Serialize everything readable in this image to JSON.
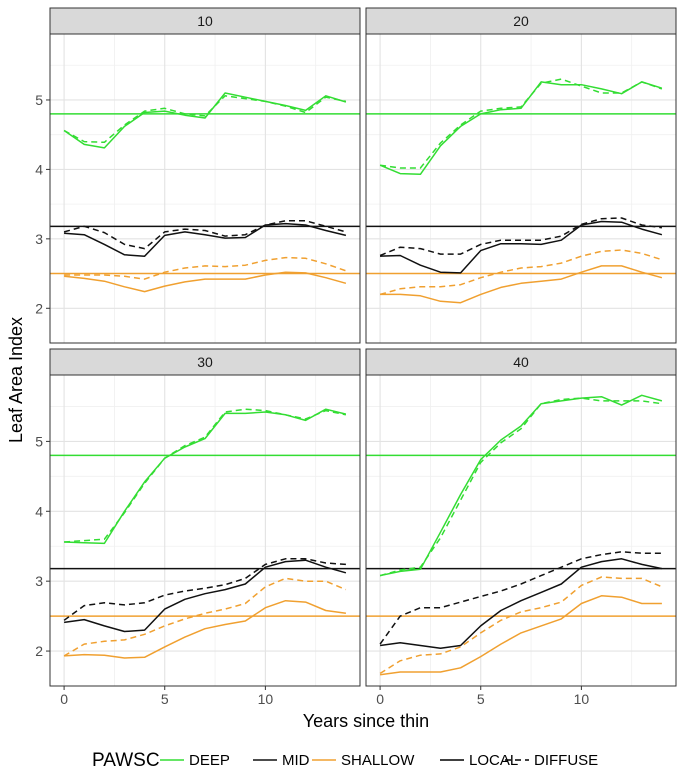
{
  "chart_data": {
    "type": "line",
    "facet_variable": "thinning",
    "xlabel": "Years since thin",
    "ylabel": "Leaf Area Index",
    "xlim": [
      -0.7,
      14.7
    ],
    "ylim": [
      1.5,
      5.95
    ],
    "x_ticks": [
      0,
      5,
      10
    ],
    "y_ticks": [
      2,
      3,
      4,
      5
    ],
    "x": [
      0,
      1,
      2,
      3,
      4,
      5,
      6,
      7,
      8,
      9,
      10,
      11,
      12,
      13,
      14
    ],
    "colors": {
      "DEEP": "#33dd33",
      "MID": "#111111",
      "SHALLOW": "#f0a030"
    },
    "reference_lines": [
      {
        "group": "DEEP",
        "value": 4.8
      },
      {
        "group": "MID",
        "value": 3.18
      },
      {
        "group": "SHALLOW",
        "value": 2.5
      }
    ],
    "legend": {
      "title": "PAWSC",
      "color_entries": [
        "DEEP",
        "MID",
        "SHALLOW"
      ],
      "linetype_entries": [
        "LOCAL",
        "DIFFUSE"
      ],
      "position": "bottom"
    },
    "panels": [
      {
        "label": "10",
        "series": [
          {
            "group": "DEEP",
            "type": "LOCAL",
            "values": [
              4.56,
              4.36,
              4.31,
              4.62,
              4.82,
              4.84,
              4.78,
              4.74,
              5.1,
              5.04,
              4.98,
              4.92,
              4.85,
              5.06,
              4.97
            ]
          },
          {
            "group": "DEEP",
            "type": "DIFFUSE",
            "values": [
              4.56,
              4.4,
              4.39,
              4.64,
              4.84,
              4.88,
              4.8,
              4.77,
              5.06,
              5.02,
              4.98,
              4.91,
              4.82,
              5.04,
              4.98
            ]
          },
          {
            "group": "MID",
            "type": "LOCAL",
            "values": [
              3.08,
              3.06,
              2.92,
              2.77,
              2.75,
              3.05,
              3.1,
              3.06,
              3.01,
              3.02,
              3.2,
              3.22,
              3.2,
              3.12,
              3.05
            ]
          },
          {
            "group": "MID",
            "type": "DIFFUSE",
            "values": [
              3.1,
              3.18,
              3.09,
              2.92,
              2.86,
              3.1,
              3.14,
              3.12,
              3.04,
              3.06,
              3.2,
              3.26,
              3.26,
              3.18,
              3.1
            ]
          },
          {
            "group": "SHALLOW",
            "type": "LOCAL",
            "values": [
              2.46,
              2.43,
              2.39,
              2.31,
              2.24,
              2.32,
              2.38,
              2.42,
              2.42,
              2.42,
              2.48,
              2.52,
              2.51,
              2.44,
              2.36
            ]
          },
          {
            "group": "SHALLOW",
            "type": "DIFFUSE",
            "values": [
              2.48,
              2.48,
              2.48,
              2.46,
              2.42,
              2.52,
              2.58,
              2.61,
              2.6,
              2.62,
              2.69,
              2.73,
              2.72,
              2.64,
              2.54
            ]
          }
        ]
      },
      {
        "label": "20",
        "series": [
          {
            "group": "DEEP",
            "type": "LOCAL",
            "values": [
              4.06,
              3.94,
              3.93,
              4.34,
              4.62,
              4.8,
              4.86,
              4.88,
              5.26,
              5.22,
              5.22,
              5.16,
              5.09,
              5.26,
              5.17
            ]
          },
          {
            "group": "DEEP",
            "type": "DIFFUSE",
            "values": [
              4.06,
              4.02,
              4.02,
              4.38,
              4.64,
              4.84,
              4.88,
              4.9,
              5.24,
              5.3,
              5.2,
              5.1,
              5.1,
              5.26,
              5.16
            ]
          },
          {
            "group": "MID",
            "type": "LOCAL",
            "values": [
              2.75,
              2.76,
              2.62,
              2.52,
              2.51,
              2.83,
              2.93,
              2.93,
              2.92,
              2.98,
              3.2,
              3.25,
              3.24,
              3.14,
              3.06
            ]
          },
          {
            "group": "MID",
            "type": "DIFFUSE",
            "values": [
              2.76,
              2.88,
              2.86,
              2.78,
              2.78,
              2.92,
              2.98,
              2.98,
              2.98,
              3.04,
              3.21,
              3.29,
              3.3,
              3.2,
              3.16
            ]
          },
          {
            "group": "SHALLOW",
            "type": "LOCAL",
            "values": [
              2.2,
              2.2,
              2.18,
              2.1,
              2.08,
              2.2,
              2.3,
              2.36,
              2.39,
              2.42,
              2.52,
              2.61,
              2.61,
              2.52,
              2.44
            ]
          },
          {
            "group": "SHALLOW",
            "type": "DIFFUSE",
            "values": [
              2.2,
              2.28,
              2.31,
              2.31,
              2.34,
              2.44,
              2.52,
              2.58,
              2.6,
              2.65,
              2.75,
              2.82,
              2.84,
              2.79,
              2.7
            ]
          }
        ]
      },
      {
        "label": "30",
        "series": [
          {
            "group": "DEEP",
            "type": "LOCAL",
            "values": [
              3.56,
              3.55,
              3.54,
              4.0,
              4.42,
              4.76,
              4.92,
              5.04,
              5.4,
              5.4,
              5.42,
              5.38,
              5.3,
              5.46,
              5.39
            ]
          },
          {
            "group": "DEEP",
            "type": "DIFFUSE",
            "values": [
              3.56,
              3.58,
              3.6,
              3.98,
              4.4,
              4.76,
              4.94,
              5.06,
              5.42,
              5.46,
              5.44,
              5.38,
              5.32,
              5.44,
              5.38
            ]
          },
          {
            "group": "MID",
            "type": "LOCAL",
            "values": [
              2.41,
              2.45,
              2.36,
              2.28,
              2.3,
              2.6,
              2.74,
              2.82,
              2.88,
              2.96,
              3.2,
              3.28,
              3.3,
              3.2,
              3.12
            ]
          },
          {
            "group": "MID",
            "type": "DIFFUSE",
            "values": [
              2.44,
              2.65,
              2.69,
              2.66,
              2.69,
              2.8,
              2.86,
              2.9,
              2.95,
              3.04,
              3.24,
              3.32,
              3.32,
              3.26,
              3.24
            ]
          },
          {
            "group": "SHALLOW",
            "type": "LOCAL",
            "values": [
              1.93,
              1.95,
              1.94,
              1.9,
              1.91,
              2.06,
              2.2,
              2.32,
              2.38,
              2.43,
              2.62,
              2.72,
              2.7,
              2.58,
              2.54
            ]
          },
          {
            "group": "SHALLOW",
            "type": "DIFFUSE",
            "values": [
              1.93,
              2.1,
              2.14,
              2.16,
              2.24,
              2.36,
              2.46,
              2.54,
              2.6,
              2.68,
              2.92,
              3.04,
              3.0,
              3.0,
              2.88
            ]
          }
        ]
      },
      {
        "label": "40",
        "series": [
          {
            "group": "DEEP",
            "type": "LOCAL",
            "values": [
              3.08,
              3.14,
              3.17,
              3.7,
              4.24,
              4.74,
              5.02,
              5.22,
              5.54,
              5.58,
              5.62,
              5.64,
              5.52,
              5.66,
              5.58
            ]
          },
          {
            "group": "DEEP",
            "type": "DIFFUSE",
            "values": [
              3.08,
              3.16,
              3.2,
              3.62,
              4.16,
              4.7,
              4.98,
              5.18,
              5.54,
              5.6,
              5.62,
              5.58,
              5.58,
              5.58,
              5.54
            ]
          },
          {
            "group": "MID",
            "type": "LOCAL",
            "values": [
              2.08,
              2.12,
              2.08,
              2.04,
              2.08,
              2.36,
              2.58,
              2.72,
              2.84,
              2.96,
              3.2,
              3.28,
              3.32,
              3.24,
              3.18
            ]
          },
          {
            "group": "MID",
            "type": "DIFFUSE",
            "values": [
              2.1,
              2.5,
              2.62,
              2.62,
              2.7,
              2.78,
              2.86,
              2.96,
              3.08,
              3.2,
              3.32,
              3.38,
              3.42,
              3.4,
              3.4
            ]
          },
          {
            "group": "SHALLOW",
            "type": "LOCAL",
            "values": [
              1.66,
              1.7,
              1.7,
              1.7,
              1.76,
              1.92,
              2.1,
              2.26,
              2.36,
              2.46,
              2.68,
              2.79,
              2.77,
              2.68,
              2.68
            ]
          },
          {
            "group": "SHALLOW",
            "type": "DIFFUSE",
            "values": [
              1.68,
              1.86,
              1.94,
              1.96,
              2.06,
              2.26,
              2.44,
              2.56,
              2.62,
              2.7,
              2.94,
              3.06,
              3.04,
              3.04,
              2.92
            ]
          }
        ]
      }
    ]
  }
}
